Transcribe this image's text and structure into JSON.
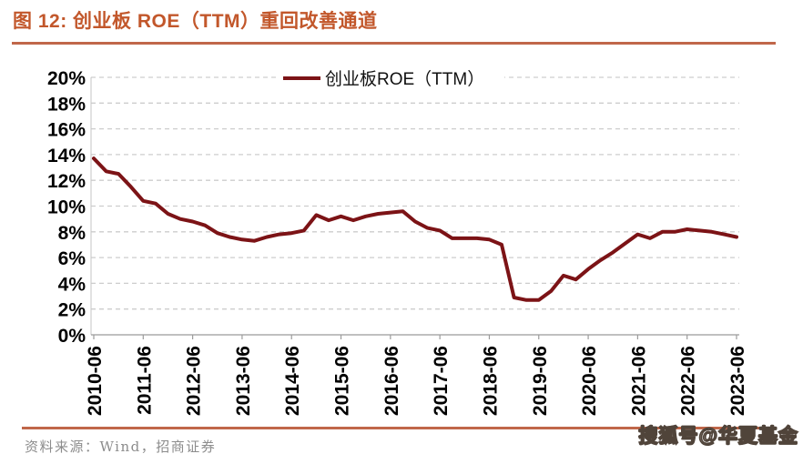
{
  "header": {
    "title": "图 12:  创业板 ROE（TTM）重回改善通道"
  },
  "chart_data": {
    "type": "line",
    "title": "创业板 ROE（TTM）重回改善通道",
    "legend_position": "top-center",
    "grid": "horizontal-dashed",
    "ylim": [
      0,
      20
    ],
    "y_tick_step": 2,
    "y_tick_format": "percent",
    "x_tick_labels": [
      "2010-06",
      "2011-06",
      "2012-06",
      "2013-06",
      "2014-06",
      "2015-06",
      "2016-06",
      "2017-06",
      "2018-06",
      "2019-06",
      "2020-06",
      "2021-06",
      "2022-06",
      "2023-06"
    ],
    "series": [
      {
        "name": "创业板ROE（TTM）",
        "color": "#7C1316",
        "x": [
          "2010-06",
          "2010-09",
          "2010-12",
          "2011-03",
          "2011-06",
          "2011-09",
          "2011-12",
          "2012-03",
          "2012-06",
          "2012-09",
          "2012-12",
          "2013-03",
          "2013-06",
          "2013-09",
          "2013-12",
          "2014-03",
          "2014-06",
          "2014-09",
          "2014-12",
          "2015-03",
          "2015-06",
          "2015-09",
          "2015-12",
          "2016-03",
          "2016-06",
          "2016-09",
          "2016-12",
          "2017-03",
          "2017-06",
          "2017-09",
          "2017-12",
          "2018-03",
          "2018-06",
          "2018-09",
          "2018-12",
          "2019-03",
          "2019-06",
          "2019-09",
          "2019-12",
          "2020-03",
          "2020-06",
          "2020-09",
          "2020-12",
          "2021-03",
          "2021-06",
          "2021-09",
          "2021-12",
          "2022-03",
          "2022-06",
          "2022-09",
          "2022-12",
          "2023-03",
          "2023-06"
        ],
        "values": [
          13.7,
          12.7,
          12.5,
          11.5,
          10.4,
          10.2,
          9.4,
          9.0,
          8.8,
          8.5,
          7.9,
          7.6,
          7.4,
          7.3,
          7.6,
          7.8,
          7.9,
          8.1,
          9.3,
          8.9,
          9.2,
          8.9,
          9.2,
          9.4,
          9.5,
          9.6,
          8.8,
          8.3,
          8.1,
          7.5,
          7.5,
          7.5,
          7.4,
          7.0,
          2.9,
          2.7,
          2.7,
          3.4,
          4.6,
          4.3,
          5.1,
          5.8,
          6.4,
          7.1,
          7.8,
          7.5,
          8.0,
          8.0,
          8.2,
          8.1,
          8.0,
          7.8,
          7.6
        ]
      }
    ]
  },
  "footer": {
    "source": "资料来源：Wind，招商证券",
    "watermark": "搜狐号@华夏基金"
  },
  "colors": {
    "title": "#C2572B",
    "separator": "#C0674A",
    "line": "#7C1316",
    "grid": "#CDCDCD",
    "axis": "#9B9B9B",
    "source_text": "#8C8C8C"
  }
}
